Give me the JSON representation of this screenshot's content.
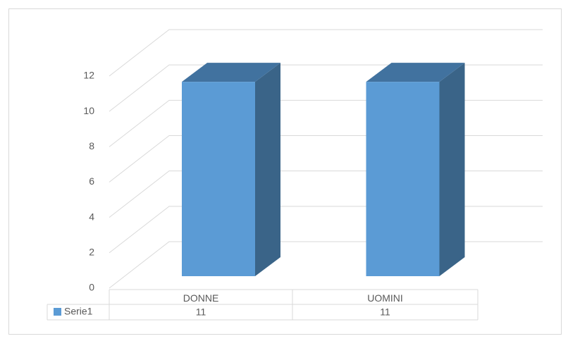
{
  "chart_data": {
    "type": "bar",
    "categories": [
      "DONNE",
      "UOMINI"
    ],
    "series": [
      {
        "name": "Serie1",
        "color": "#5b9bd5",
        "values": [
          11,
          11
        ]
      }
    ],
    "ylim": [
      0,
      12
    ],
    "yticks": [
      0,
      2,
      4,
      6,
      8,
      10,
      12
    ],
    "grid": true
  }
}
